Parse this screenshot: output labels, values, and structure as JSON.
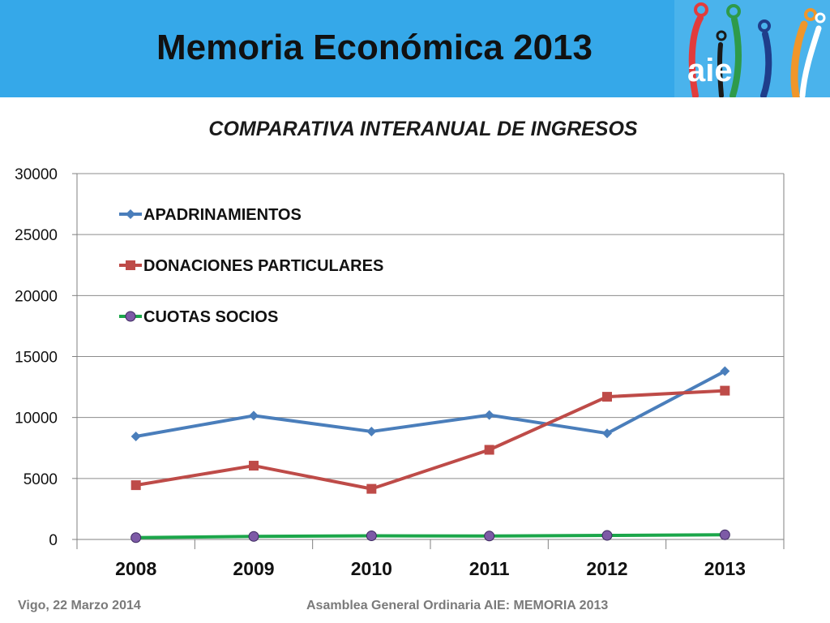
{
  "slide": {
    "title": "Memoria Económica 2013",
    "logo_text": "aie"
  },
  "footer": {
    "left": "Vigo, 22 Marzo 2014",
    "right": "Asamblea General Ordinaria AIE:   MEMORIA 2013"
  },
  "chart_data": {
    "type": "line",
    "title": "COMPARATIVA INTERANUAL DE INGRESOS",
    "categories": [
      "2008",
      "2009",
      "2010",
      "2011",
      "2012",
      "2013"
    ],
    "ylim": [
      0,
      30000
    ],
    "yticks": [
      "0",
      "5000",
      "10000",
      "15000",
      "20000",
      "25000",
      "30000"
    ],
    "grid": true,
    "legend_position": "top-left",
    "series": [
      {
        "name": "APADRINAMIENTOS",
        "color": "#4a7ebb",
        "marker": "diamond",
        "values": [
          8450,
          10150,
          8850,
          10200,
          8700,
          13800
        ]
      },
      {
        "name": "DONACIONES PARTICULARES",
        "color": "#be4b48",
        "marker": "square",
        "values": [
          4450,
          6050,
          4150,
          7350,
          11700,
          12200
        ]
      },
      {
        "name": "CUOTAS SOCIOS",
        "color": "#1ba64a",
        "marker_color": "#7d5aa6",
        "marker": "circle",
        "values": [
          150,
          250,
          300,
          280,
          330,
          380
        ]
      }
    ]
  }
}
